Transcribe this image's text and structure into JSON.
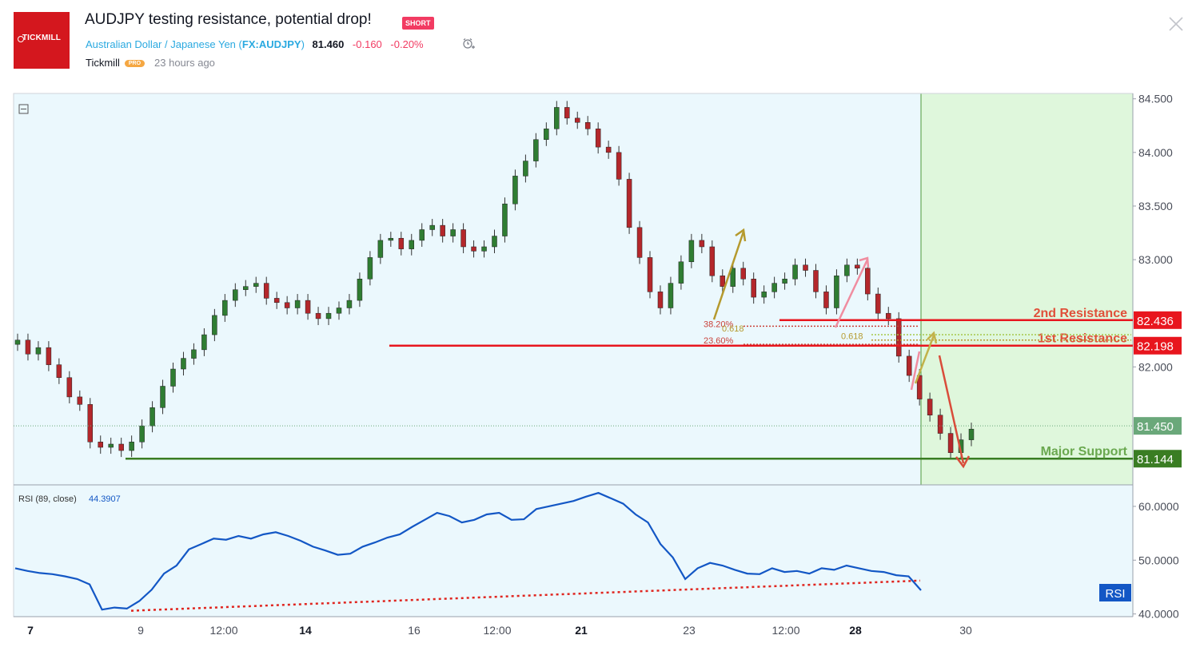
{
  "header": {
    "logo_text": "TICKMILL",
    "title": "AUDJPY testing resistance, potential drop!",
    "badge": "SHORT",
    "symbol_name": "Australian Dollar / Japanese Yen",
    "symbol_open": "(",
    "symbol_code": "FX:AUDJPY",
    "symbol_close": ")",
    "price": "81.460",
    "change": "-0.160",
    "change_pct": "-0.20%",
    "author": "Tickmill",
    "author_badge": "PRO",
    "time_ago": "23 hours ago"
  },
  "colors": {
    "accent": "#2aa9e0",
    "negative": "#f23b62",
    "resistance": "#e8161e",
    "support": "#3a7d23",
    "rsi_line": "#1357c5",
    "zone": "#dff7dc",
    "chart_bg": "#ebf8fd"
  },
  "chart_data": [
    {
      "type": "candlestick",
      "symbol": "FX:AUDJPY",
      "y_ticks": [
        "84.500",
        "84.000",
        "83.500",
        "83.000",
        "82.000"
      ],
      "ylim": [
        80.9,
        84.55
      ],
      "x_ticks": [
        "7",
        "9",
        "12:00",
        "14",
        "16",
        "12:00",
        "21",
        "23",
        "12:00",
        "28",
        "30"
      ],
      "x_ticks_bold": [
        "7",
        "14",
        "21",
        "28"
      ],
      "last_price": "81.450",
      "levels": [
        {
          "name": "2nd Resistance",
          "value": 82.436,
          "label": "82.436",
          "color": "#e8161e"
        },
        {
          "name": "1st Resistance",
          "value": 82.198,
          "label": "82.198",
          "color": "#e8161e"
        },
        {
          "name": "Major Support",
          "value": 81.144,
          "label": "81.144",
          "color": "#3a7d23"
        }
      ],
      "fib_labels": [
        "38.20%",
        "0.618",
        "23.60%",
        "0.618"
      ],
      "series": [
        {
          "values": [
            82.25,
            82.12,
            82.18,
            82.02,
            81.9,
            81.72,
            81.65,
            81.3,
            81.25,
            81.28,
            81.22,
            81.3,
            81.45,
            81.62,
            81.82,
            81.98,
            82.08,
            82.16,
            82.3,
            82.48,
            82.62,
            82.72,
            82.75,
            82.78,
            82.64,
            82.6,
            82.55,
            82.62,
            82.5,
            82.45,
            82.5,
            82.55,
            82.62,
            82.82,
            83.02,
            83.18,
            83.2,
            83.1,
            83.18,
            83.28,
            83.32,
            83.22,
            83.28,
            83.12,
            83.08,
            83.12,
            83.22,
            83.52,
            83.78,
            83.92,
            84.12,
            84.22,
            84.42,
            84.32,
            84.28,
            84.22,
            84.05,
            84.0,
            83.75,
            83.3,
            83.02,
            82.7,
            82.55,
            82.78,
            82.98,
            83.18,
            83.12,
            82.85,
            82.75,
            82.92,
            82.82,
            82.65,
            82.7,
            82.78,
            82.82,
            82.95,
            82.9,
            82.7,
            82.55,
            82.85,
            82.95,
            82.92,
            82.68,
            82.5,
            82.45,
            82.1,
            81.92,
            81.7,
            81.55,
            81.38,
            81.2,
            81.32,
            81.42
          ]
        }
      ]
    },
    {
      "type": "line",
      "title": "RSI (89, close)",
      "value_label": "44.3907",
      "tag": "RSI",
      "y_ticks": [
        "60.0000",
        "50.0000",
        "40.0000"
      ],
      "ylim": [
        39.5,
        64.0
      ],
      "series": [
        {
          "values": [
            48.5,
            48.0,
            47.6,
            47.4,
            47.0,
            46.5,
            45.5,
            40.8,
            41.2,
            41.0,
            42.4,
            44.5,
            47.5,
            49.0,
            52.0,
            53.0,
            54.0,
            53.8,
            54.5,
            54.0,
            54.8,
            55.2,
            54.5,
            53.6,
            52.5,
            51.8,
            51.0,
            51.2,
            52.5,
            53.3,
            54.2,
            54.8,
            56.2,
            57.5,
            58.8,
            58.2,
            57.0,
            57.5,
            58.5,
            58.8,
            57.5,
            57.6,
            59.5,
            60.0,
            60.5,
            61.0,
            61.8,
            62.5,
            61.5,
            60.5,
            58.5,
            57.0,
            53.0,
            50.5,
            46.5,
            48.5,
            49.5,
            49.0,
            48.2,
            47.5,
            47.4,
            48.5,
            47.8,
            48.0,
            47.5,
            48.5,
            48.2,
            49.0,
            48.5,
            48.0,
            47.8,
            47.2,
            47.0,
            44.4
          ]
        }
      ],
      "trendline": [
        {
          "x": 0.105,
          "y": 40.6
        },
        {
          "x": 0.81,
          "y": 46.2
        }
      ]
    }
  ]
}
